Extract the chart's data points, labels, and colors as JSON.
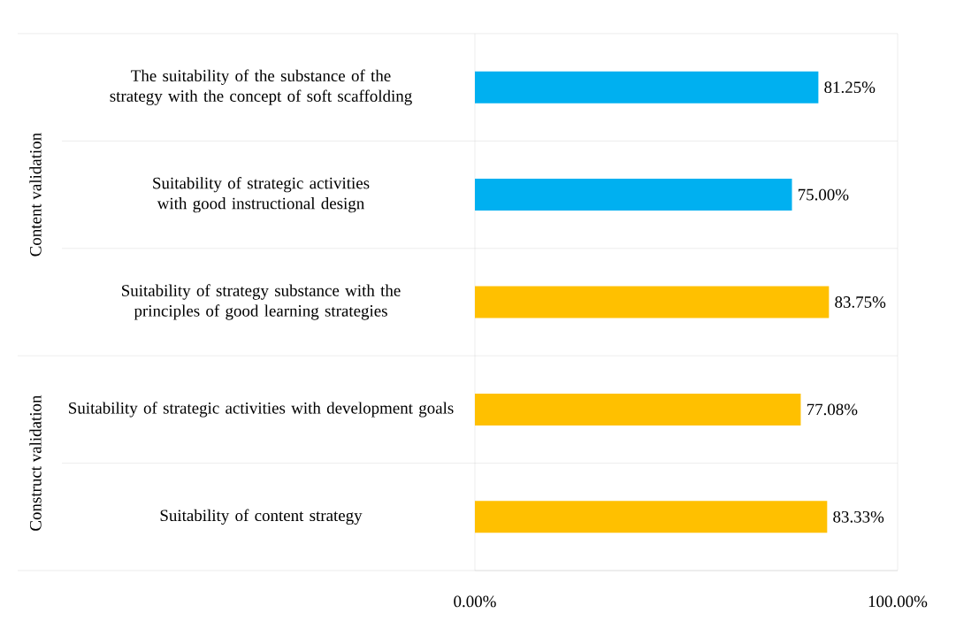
{
  "chart_data": {
    "type": "bar",
    "orientation": "horizontal",
    "categories": [
      "The suitability of the substance of the strategy with the concept of soft scaffolding",
      "Suitability of strategic activities with good instructional design",
      "Suitability of strategy substance with the principles of good learning strategies",
      "Suitability of strategic activities with development goals",
      "Suitability of content strategy"
    ],
    "values": [
      81.25,
      75.0,
      83.75,
      77.08,
      83.33
    ],
    "colors": [
      "#00b0f0",
      "#00b0f0",
      "#ffc000",
      "#ffc000",
      "#ffc000"
    ],
    "value_labels": [
      "81.25%",
      "75.00%",
      "83.75%",
      "77.08%",
      "83.33%"
    ],
    "xlim": [
      0,
      100
    ],
    "xticks": [
      {
        "value": 0,
        "label": "0.00%"
      },
      {
        "value": 100,
        "label": "100.00%"
      }
    ],
    "annotations": [
      "Content validation",
      "Construct validation"
    ]
  }
}
